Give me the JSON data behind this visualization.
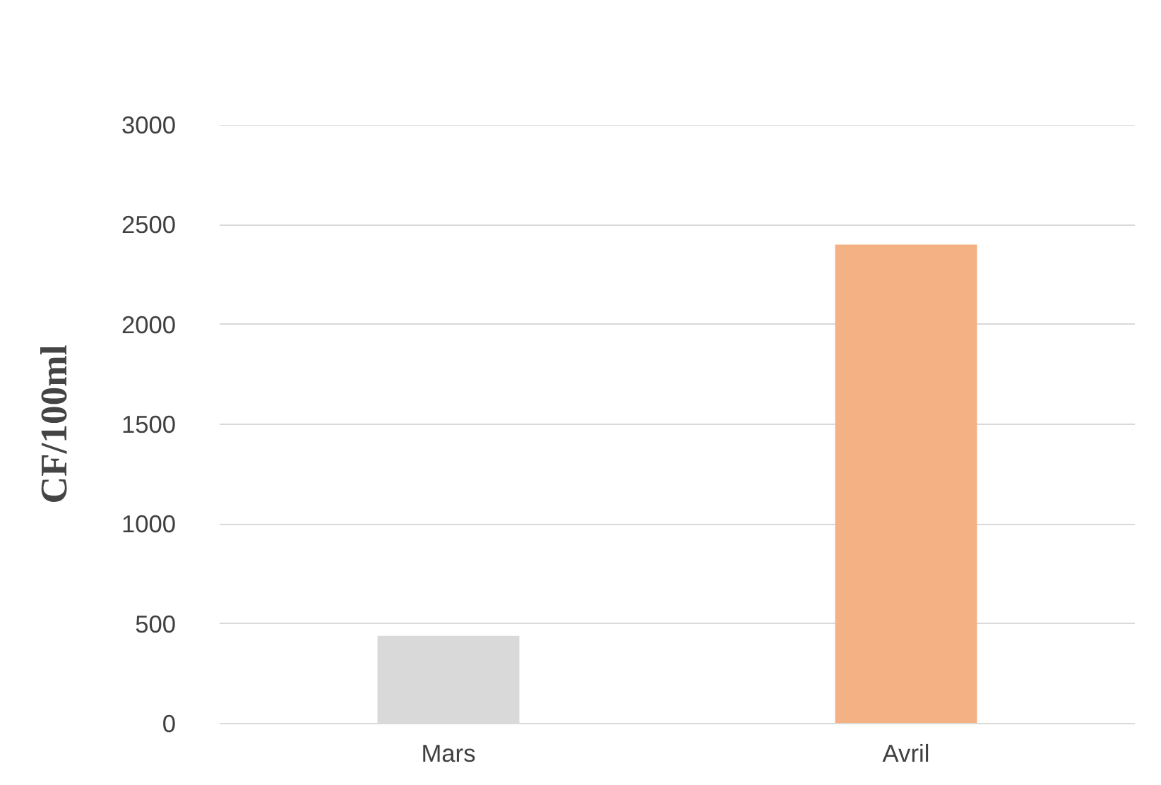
{
  "chart_data": {
    "type": "bar",
    "ylabel": "CF/100ml",
    "categories": [
      "Mars",
      "Avril"
    ],
    "values": [
      440,
      2400
    ],
    "colors": [
      "#d9d9d9",
      "#f4b183"
    ],
    "ylim": [
      0,
      3000
    ],
    "yticks": [
      0,
      500,
      1000,
      1500,
      2000,
      2500,
      3000
    ],
    "grid": "y"
  }
}
